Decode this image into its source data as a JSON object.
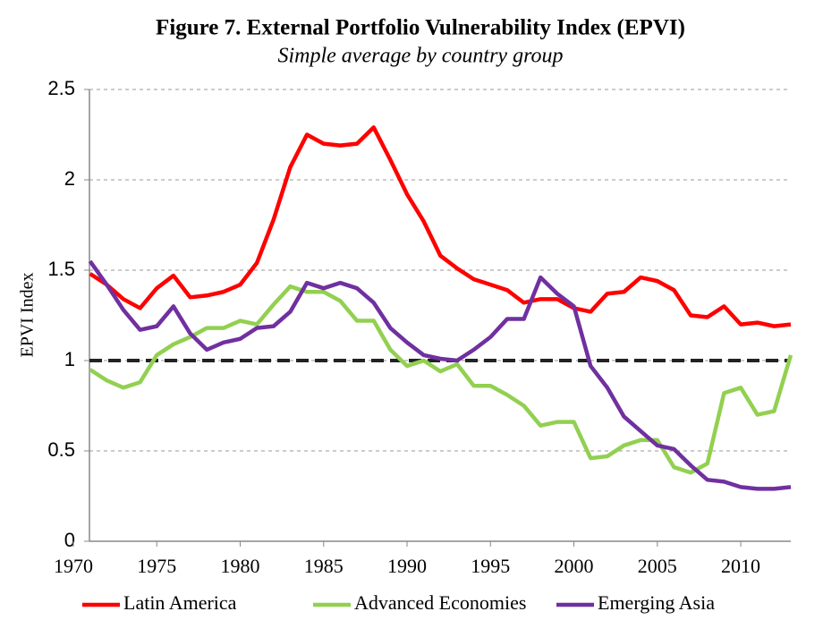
{
  "chart_data": {
    "type": "line",
    "title": "Figure 7. External Portfolio Vulnerability Index (EPVI)",
    "subtitle": "Simple average by country group",
    "y_label": "EPVI Index",
    "x": [
      1971,
      1972,
      1973,
      1974,
      1975,
      1976,
      1977,
      1978,
      1979,
      1980,
      1981,
      1982,
      1983,
      1984,
      1985,
      1986,
      1987,
      1988,
      1989,
      1990,
      1991,
      1992,
      1993,
      1994,
      1995,
      1996,
      1997,
      1998,
      1999,
      2000,
      2001,
      2002,
      2003,
      2004,
      2005,
      2006,
      2007,
      2008,
      2009,
      2010,
      2011,
      2012,
      2013
    ],
    "series": [
      {
        "name": "Latin America",
        "color": "#ff0000",
        "values": [
          1.48,
          1.42,
          1.34,
          1.29,
          1.4,
          1.47,
          1.35,
          1.36,
          1.38,
          1.42,
          1.54,
          1.78,
          2.07,
          2.25,
          2.2,
          2.19,
          2.2,
          2.29,
          2.11,
          1.92,
          1.77,
          1.58,
          1.51,
          1.45,
          1.42,
          1.39,
          1.32,
          1.34,
          1.34,
          1.29,
          1.27,
          1.37,
          1.38,
          1.46,
          1.44,
          1.39,
          1.25,
          1.24,
          1.3,
          1.2,
          1.21,
          1.19,
          1.2
        ]
      },
      {
        "name": "Advanced Economies",
        "color": "#92d050",
        "values": [
          0.95,
          0.89,
          0.85,
          0.88,
          1.03,
          1.09,
          1.13,
          1.18,
          1.18,
          1.22,
          1.2,
          1.31,
          1.41,
          1.38,
          1.38,
          1.33,
          1.22,
          1.22,
          1.06,
          0.97,
          1.0,
          0.94,
          0.98,
          0.86,
          0.86,
          0.81,
          0.75,
          0.64,
          0.66,
          0.66,
          0.46,
          0.47,
          0.53,
          0.56,
          0.56,
          0.41,
          0.38,
          0.43,
          0.82,
          0.85,
          0.7,
          0.72,
          1.03
        ]
      },
      {
        "name": "Emerging Asia",
        "color": "#7030a0",
        "values": [
          1.55,
          1.42,
          1.28,
          1.17,
          1.19,
          1.3,
          1.15,
          1.06,
          1.1,
          1.12,
          1.18,
          1.19,
          1.27,
          1.43,
          1.4,
          1.43,
          1.4,
          1.32,
          1.18,
          1.1,
          1.03,
          1.01,
          1.0,
          1.06,
          1.13,
          1.23,
          1.23,
          1.46,
          1.37,
          1.3,
          0.97,
          0.85,
          0.69,
          0.61,
          0.53,
          0.51,
          0.42,
          0.34,
          0.33,
          0.3,
          0.29,
          0.29,
          0.3
        ]
      }
    ],
    "reference_line": 1,
    "xlim": [
      1970,
      2013
    ],
    "xticks": [
      1970,
      1975,
      1980,
      1985,
      1990,
      1995,
      2000,
      2005,
      2010
    ],
    "ylim": [
      0,
      2.5
    ],
    "yticks": [
      0,
      0.5,
      1,
      1.5,
      2,
      2.5
    ],
    "grid": true,
    "legend": "bottom"
  }
}
